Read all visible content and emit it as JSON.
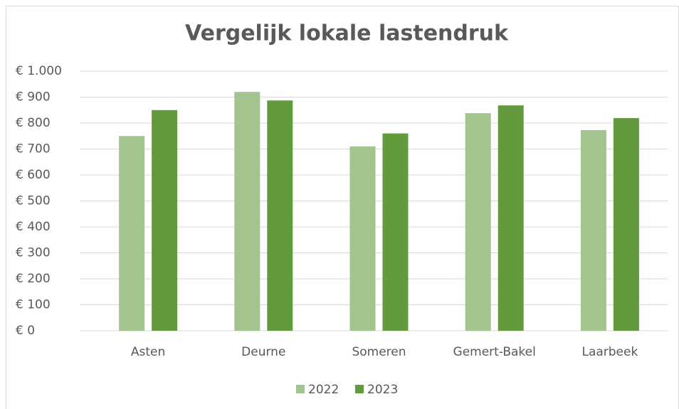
{
  "chart_data": {
    "type": "bar",
    "title": "Vergelijk lokale lastendruk",
    "categories": [
      "Asten",
      "Deurne",
      "Someren",
      "Gemert-Bakel",
      "Laarbeek"
    ],
    "series": [
      {
        "name": "2022",
        "color": "#a3c48f",
        "values": [
          750,
          920,
          710,
          838,
          773
        ]
      },
      {
        "name": "2023",
        "color": "#629a3d",
        "values": [
          850,
          887,
          760,
          868,
          819
        ]
      }
    ],
    "ylim": [
      0,
      1000
    ],
    "yticks": [
      {
        "value": 0,
        "label": "€ 0"
      },
      {
        "value": 100,
        "label": "€ 100"
      },
      {
        "value": 200,
        "label": "€ 200"
      },
      {
        "value": 300,
        "label": "€ 300"
      },
      {
        "value": 400,
        "label": "€ 400"
      },
      {
        "value": 500,
        "label": "€ 500"
      },
      {
        "value": 600,
        "label": "€ 600"
      },
      {
        "value": 700,
        "label": "€ 700"
      },
      {
        "value": 800,
        "label": "€ 800"
      },
      {
        "value": 900,
        "label": "€ 900"
      },
      {
        "value": 1000,
        "label": "€ 1.000"
      }
    ],
    "grid": true,
    "legend": "bottom"
  }
}
